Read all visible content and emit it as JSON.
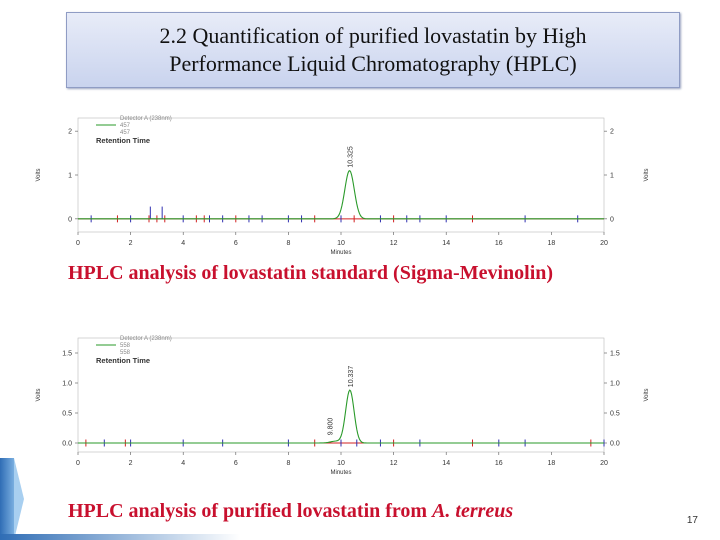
{
  "slide": {
    "title_line1": "2.2 Quantification of purified lovastatin by High",
    "title_line2": "Performance Liquid Chromatography (HPLC)",
    "caption1": "HPLC analysis of lovastatin standard (Sigma-Mevinolin)",
    "caption2_prefix": "HPLC analysis of purified lovastatin from ",
    "caption2_italic": "A. terreus",
    "page_number": "17"
  },
  "colors": {
    "peak_line": "#2a9a2a",
    "baseline": "#d22020",
    "marker": "#3030b0",
    "caption": "#c8102e"
  },
  "chart_data": [
    {
      "type": "line",
      "legend": [
        "Detector A (238nm)",
        "457",
        "457",
        "Retention Time"
      ],
      "xlabel": "Minutes",
      "ylabel": "Volts",
      "xlim": [
        0,
        20
      ],
      "ylim": [
        -0.3,
        2.3
      ],
      "xticks": [
        0,
        2,
        4,
        6,
        8,
        10,
        12,
        14,
        16,
        18,
        20
      ],
      "yticks": [
        0,
        1,
        2
      ],
      "peak": {
        "retention_time": 10.325,
        "height": 1.1,
        "width": 0.18
      },
      "peak_label": "10.325",
      "event_markers": [
        1.5,
        2.0,
        2.7,
        3.0,
        3.3,
        4.0,
        4.5,
        5.0,
        5.5,
        6.0,
        6.5,
        7.0,
        8.0,
        8.5,
        9.0,
        10.0,
        10.5,
        12.0,
        12.5,
        13.0,
        14.0,
        15.0,
        17.0,
        19.0,
        0.5,
        4.8,
        11.5
      ],
      "spikes": [
        2.75,
        3.2
      ]
    },
    {
      "type": "line",
      "legend": [
        "Detector A (238nm)",
        "558",
        "558",
        "Retention Time"
      ],
      "xlabel": "Minutes",
      "ylabel": "Volts",
      "xlim": [
        0,
        20
      ],
      "ylim": [
        -0.15,
        1.75
      ],
      "xticks": [
        0,
        2,
        4,
        6,
        8,
        10,
        12,
        14,
        16,
        18,
        20
      ],
      "yticks": [
        0.0,
        0.5,
        1.0,
        1.5
      ],
      "peak": {
        "retention_time": 10.337,
        "height": 0.88,
        "width": 0.16
      },
      "peak_label": "10.337",
      "minor_peak": {
        "retention_time": 9.8,
        "height": 0.03,
        "width": 0.2
      },
      "minor_peak_label": "9.800",
      "event_markers": [
        0.3,
        1.0,
        1.8,
        2.0,
        4.0,
        5.5,
        8.0,
        9.0,
        10.0,
        10.6,
        11.5,
        12.0,
        13.0,
        15.0,
        16.0,
        17.0,
        19.5,
        20.0
      ]
    }
  ]
}
